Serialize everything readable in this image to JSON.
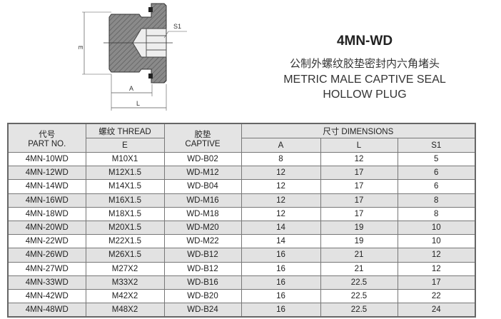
{
  "drawing": {
    "labels": {
      "e": "E",
      "s1": "S1",
      "a": "A",
      "l": "L"
    }
  },
  "title": {
    "code": "4MN-WD",
    "chinese": "公制外螺纹胶垫密封内六角堵头",
    "english": "METRIC MALE CAPTIVE SEAL HOLLOW PLUG"
  },
  "table": {
    "headers": {
      "part_cn": "代号",
      "part_en": "PART NO.",
      "thread": "螺纹 THREAD",
      "thread_sub": "E",
      "captive_cn": "胶垫",
      "captive_en": "CAPTIVE",
      "dims": "尺寸 DIMENSIONS",
      "a": "A",
      "l": "L",
      "s1": "S1"
    },
    "rows": [
      {
        "part": "4MN-10WD",
        "thread": "M10X1",
        "captive": "WD-B02",
        "a": "8",
        "l": "12",
        "s1": "5",
        "shaded": false
      },
      {
        "part": "4MN-12WD",
        "thread": "M12X1.5",
        "captive": "WD-M12",
        "a": "12",
        "l": "17",
        "s1": "6",
        "shaded": true
      },
      {
        "part": "4MN-14WD",
        "thread": "M14X1.5",
        "captive": "WD-B04",
        "a": "12",
        "l": "17",
        "s1": "6",
        "shaded": false
      },
      {
        "part": "4MN-16WD",
        "thread": "M16X1.5",
        "captive": "WD-M16",
        "a": "12",
        "l": "17",
        "s1": "8",
        "shaded": true
      },
      {
        "part": "4MN-18WD",
        "thread": "M18X1.5",
        "captive": "WD-M18",
        "a": "12",
        "l": "17",
        "s1": "8",
        "shaded": false
      },
      {
        "part": "4MN-20WD",
        "thread": "M20X1.5",
        "captive": "WD-M20",
        "a": "14",
        "l": "19",
        "s1": "10",
        "shaded": true
      },
      {
        "part": "4MN-22WD",
        "thread": "M22X1.5",
        "captive": "WD-M22",
        "a": "14",
        "l": "19",
        "s1": "10",
        "shaded": false
      },
      {
        "part": "4MN-26WD",
        "thread": "M26X1.5",
        "captive": "WD-B12",
        "a": "16",
        "l": "21",
        "s1": "12",
        "shaded": true
      },
      {
        "part": "4MN-27WD",
        "thread": "M27X2",
        "captive": "WD-B12",
        "a": "16",
        "l": "21",
        "s1": "12",
        "shaded": false
      },
      {
        "part": "4MN-33WD",
        "thread": "M33X2",
        "captive": "WD-B16",
        "a": "16",
        "l": "22.5",
        "s1": "17",
        "shaded": true
      },
      {
        "part": "4MN-42WD",
        "thread": "M42X2",
        "captive": "WD-B20",
        "a": "16",
        "l": "22.5",
        "s1": "22",
        "shaded": false
      },
      {
        "part": "4MN-48WD",
        "thread": "M48X2",
        "captive": "WD-B24",
        "a": "16",
        "l": "22.5",
        "s1": "24",
        "shaded": true
      }
    ]
  }
}
